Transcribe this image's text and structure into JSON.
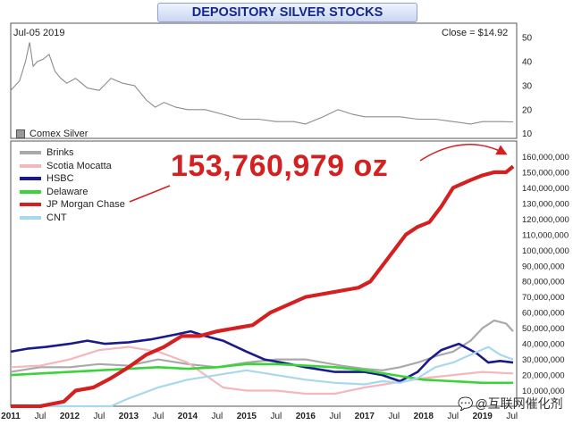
{
  "chart_data": {
    "type": "line",
    "title": "DEPOSITORY SILVER STOCKS",
    "top_panel": {
      "date_label": "Jul-05  2019",
      "close_label": "Close = $14.92",
      "legend_label": "Comex Silver",
      "ylim": [
        8,
        56
      ],
      "yticks": [
        10,
        20,
        30,
        40,
        50
      ],
      "series": [
        {
          "name": "Comex Silver",
          "x": [
            2011.0,
            2011.15,
            2011.25,
            2011.32,
            2011.38,
            2011.45,
            2011.55,
            2011.65,
            2011.75,
            2011.85,
            2011.95,
            2012.1,
            2012.3,
            2012.5,
            2012.7,
            2012.9,
            2013.1,
            2013.3,
            2013.45,
            2013.6,
            2013.8,
            2014.0,
            2014.3,
            2014.6,
            2014.9,
            2015.2,
            2015.5,
            2015.8,
            2016.0,
            2016.3,
            2016.55,
            2016.8,
            2017.0,
            2017.3,
            2017.6,
            2017.9,
            2018.2,
            2018.5,
            2018.8,
            2019.0,
            2019.3,
            2019.52
          ],
          "values": [
            28,
            32,
            40,
            48,
            38,
            40,
            41,
            43,
            36,
            33,
            31,
            33,
            29,
            28,
            33,
            31,
            30,
            24,
            21,
            23,
            21,
            20,
            20,
            18,
            16,
            16,
            15,
            15,
            14,
            17,
            20,
            18,
            17,
            17,
            17,
            16,
            16,
            15,
            14,
            15,
            15,
            14.9
          ]
        }
      ]
    },
    "main_panel": {
      "annotation": "153,760,979 oz",
      "ylim": [
        0,
        170000000
      ],
      "ytick_labels": [
        "10,000,000",
        "20,000,000",
        "30,000,000",
        "40,000,000",
        "50,000,000",
        "60,000,000",
        "70,000,000",
        "80,000,000",
        "90,000,000",
        "100,000,000",
        "110,000,000",
        "120,000,000",
        "130,000,000",
        "140,000,000",
        "150,000,000",
        "160,000,000"
      ],
      "yticks": [
        10000000,
        20000000,
        30000000,
        40000000,
        50000000,
        60000000,
        70000000,
        80000000,
        90000000,
        100000000,
        110000000,
        120000000,
        130000000,
        140000000,
        150000000,
        160000000
      ],
      "xtick_labels": [
        "2011",
        "Jul",
        "2012",
        "Jul",
        "2013",
        "Jul",
        "2014",
        "Jul",
        "2015",
        "Jul",
        "2016",
        "Jul",
        "2017",
        "Jul",
        "2018",
        "Jul",
        "2019",
        "Jul"
      ],
      "xticks": [
        2011.0,
        2011.5,
        2012.0,
        2012.5,
        2013.0,
        2013.5,
        2014.0,
        2014.5,
        2015.0,
        2015.5,
        2016.0,
        2016.5,
        2017.0,
        2017.5,
        2018.0,
        2018.5,
        2019.0,
        2019.5
      ],
      "xlim": [
        2011.0,
        2019.58
      ],
      "legend_position": "top-left",
      "series": [
        {
          "name": "Brinks",
          "color": "#a9a9a9",
          "x": [
            2011.0,
            2011.5,
            2012.0,
            2012.5,
            2013.0,
            2013.5,
            2014.0,
            2014.5,
            2015.0,
            2015.5,
            2016.0,
            2016.3,
            2016.6,
            2017.0,
            2017.3,
            2017.6,
            2017.9,
            2018.2,
            2018.5,
            2018.8,
            2019.0,
            2019.2,
            2019.4,
            2019.52
          ],
          "values": [
            22000000,
            25000000,
            25000000,
            27000000,
            26000000,
            30000000,
            27000000,
            25000000,
            28000000,
            30000000,
            30000000,
            28000000,
            26000000,
            24000000,
            23000000,
            25000000,
            28000000,
            32000000,
            35000000,
            42000000,
            50000000,
            55000000,
            53000000,
            48000000
          ]
        },
        {
          "name": "Scotia Mocatta",
          "color": "#f3b7bc",
          "x": [
            2011.0,
            2011.5,
            2012.0,
            2012.5,
            2013.0,
            2013.5,
            2014.0,
            2014.3,
            2014.6,
            2015.0,
            2015.5,
            2016.0,
            2016.5,
            2017.0,
            2017.5,
            2018.0,
            2018.5,
            2019.0,
            2019.52
          ],
          "values": [
            25000000,
            26000000,
            30000000,
            36000000,
            38000000,
            35000000,
            28000000,
            20000000,
            12000000,
            10000000,
            10000000,
            8000000,
            8000000,
            12000000,
            15000000,
            18000000,
            20000000,
            22000000,
            21000000
          ]
        },
        {
          "name": "HSBC",
          "color": "#1a1a8a",
          "x": [
            2011.0,
            2011.3,
            2011.6,
            2012.0,
            2012.3,
            2012.6,
            2013.0,
            2013.4,
            2013.8,
            2014.05,
            2014.3,
            2014.6,
            2015.0,
            2015.3,
            2015.6,
            2016.0,
            2016.5,
            2017.0,
            2017.3,
            2017.6,
            2017.9,
            2018.1,
            2018.3,
            2018.6,
            2018.9,
            2019.1,
            2019.3,
            2019.52
          ],
          "values": [
            35000000,
            37000000,
            38000000,
            40000000,
            42000000,
            40000000,
            41000000,
            43000000,
            46000000,
            48000000,
            45000000,
            42000000,
            35000000,
            30000000,
            28000000,
            25000000,
            22000000,
            22000000,
            20000000,
            16000000,
            22000000,
            30000000,
            36000000,
            40000000,
            34000000,
            28000000,
            29000000,
            28000000
          ]
        },
        {
          "name": "Delaware",
          "color": "#3ad43a",
          "x": [
            2011.0,
            2011.5,
            2012.0,
            2012.5,
            2013.0,
            2013.5,
            2014.0,
            2014.5,
            2015.0,
            2015.5,
            2016.0,
            2016.5,
            2017.0,
            2017.5,
            2018.0,
            2018.5,
            2019.0,
            2019.52
          ],
          "values": [
            20000000,
            21000000,
            22000000,
            23000000,
            24000000,
            25000000,
            24000000,
            25000000,
            27000000,
            27000000,
            26000000,
            25000000,
            23000000,
            20000000,
            17000000,
            16000000,
            15000000,
            15000000
          ]
        },
        {
          "name": "JP Morgan Chase",
          "color": "#d42020",
          "x": [
            2011.0,
            2011.5,
            2011.9,
            2012.1,
            2012.4,
            2012.7,
            2013.0,
            2013.3,
            2013.6,
            2013.9,
            2014.2,
            2014.5,
            2014.8,
            2015.1,
            2015.4,
            2015.7,
            2016.0,
            2016.3,
            2016.6,
            2016.9,
            2017.1,
            2017.3,
            2017.5,
            2017.7,
            2017.9,
            2018.1,
            2018.3,
            2018.5,
            2018.8,
            2019.0,
            2019.2,
            2019.4,
            2019.52
          ],
          "values": [
            0,
            0,
            3000000,
            10000000,
            12000000,
            18000000,
            25000000,
            33000000,
            38000000,
            45000000,
            45000000,
            48000000,
            50000000,
            52000000,
            60000000,
            65000000,
            70000000,
            72000000,
            74000000,
            76000000,
            80000000,
            90000000,
            100000000,
            110000000,
            115000000,
            118000000,
            128000000,
            140000000,
            145000000,
            148000000,
            150000000,
            150000000,
            153760979
          ]
        },
        {
          "name": "CNT",
          "color": "#a8d8ec",
          "x": [
            2011.0,
            2012.0,
            2012.7,
            2013.0,
            2013.5,
            2014.0,
            2014.5,
            2015.0,
            2015.5,
            2016.0,
            2016.5,
            2017.0,
            2017.3,
            2017.6,
            2017.9,
            2018.2,
            2018.5,
            2018.8,
            2019.1,
            2019.3,
            2019.52
          ],
          "values": [
            0,
            0,
            0,
            5000000,
            12000000,
            17000000,
            20000000,
            23000000,
            20000000,
            17000000,
            15000000,
            14000000,
            16000000,
            15000000,
            18000000,
            25000000,
            28000000,
            33000000,
            38000000,
            33000000,
            30000000
          ]
        }
      ]
    }
  },
  "watermark": "@互联网催化剂",
  "watermark_icon": "chat-bubble-icon"
}
